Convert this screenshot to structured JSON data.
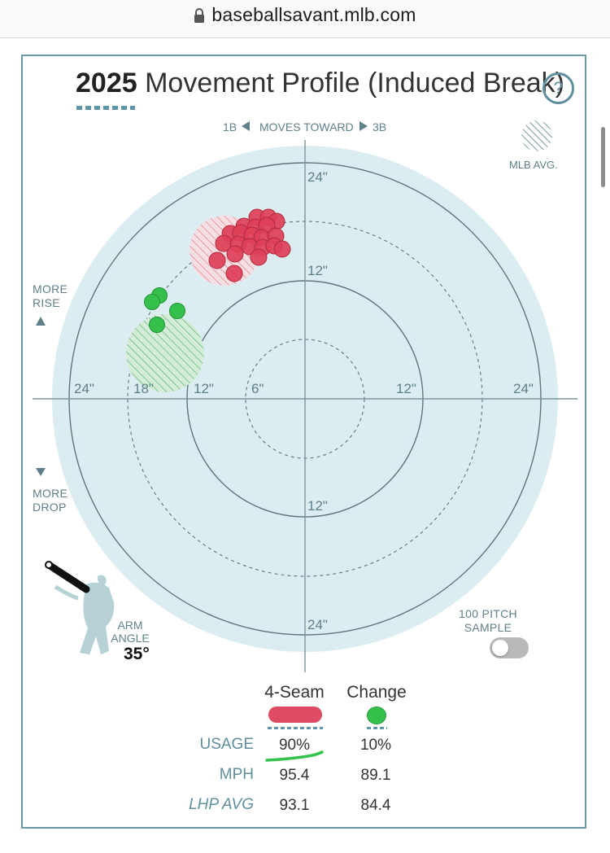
{
  "browser": {
    "url": "baseballsavant.mlb.com"
  },
  "header": {
    "year": "2025",
    "title": "Movement Profile (Induced Break)",
    "help": "?"
  },
  "direction": {
    "left": "1B",
    "middle": "MOVES TOWARD",
    "right": "3B"
  },
  "legend": {
    "mlb_avg": "MLB AVG."
  },
  "sides": {
    "rise": [
      "MORE",
      "RISE"
    ],
    "drop": [
      "MORE",
      "DROP"
    ]
  },
  "ring_labels": {
    "top24": "24\"",
    "top12": "12\"",
    "bottom12": "12\"",
    "bottom24": "24\"",
    "left24": "24\"",
    "left18": "18\"",
    "left12": "12\"",
    "left6": "6\"",
    "right12": "12\"",
    "right24": "24\""
  },
  "arm_angle": {
    "label": [
      "ARM",
      "ANGLE"
    ],
    "value": "35°"
  },
  "sample": {
    "label": [
      "100 PITCH",
      "SAMPLE"
    ],
    "enabled": false
  },
  "pitch_types": [
    {
      "name": "4-Seam",
      "color": "#dd4c62",
      "usage": "90%",
      "mph": "95.4",
      "lhp_avg": "93.1"
    },
    {
      "name": "Change",
      "color": "#35c04c",
      "usage": "10%",
      "mph": "89.1",
      "lhp_avg": "84.4"
    }
  ],
  "table_rows": {
    "usage": "USAGE",
    "mph": "MPH",
    "lhp_avg": "LHP AVG"
  },
  "colors": {
    "accent": "#5f8f9c",
    "plot_bg": "#dcedf1",
    "fourseam": "#dd4c62",
    "change": "#35c04c"
  }
}
